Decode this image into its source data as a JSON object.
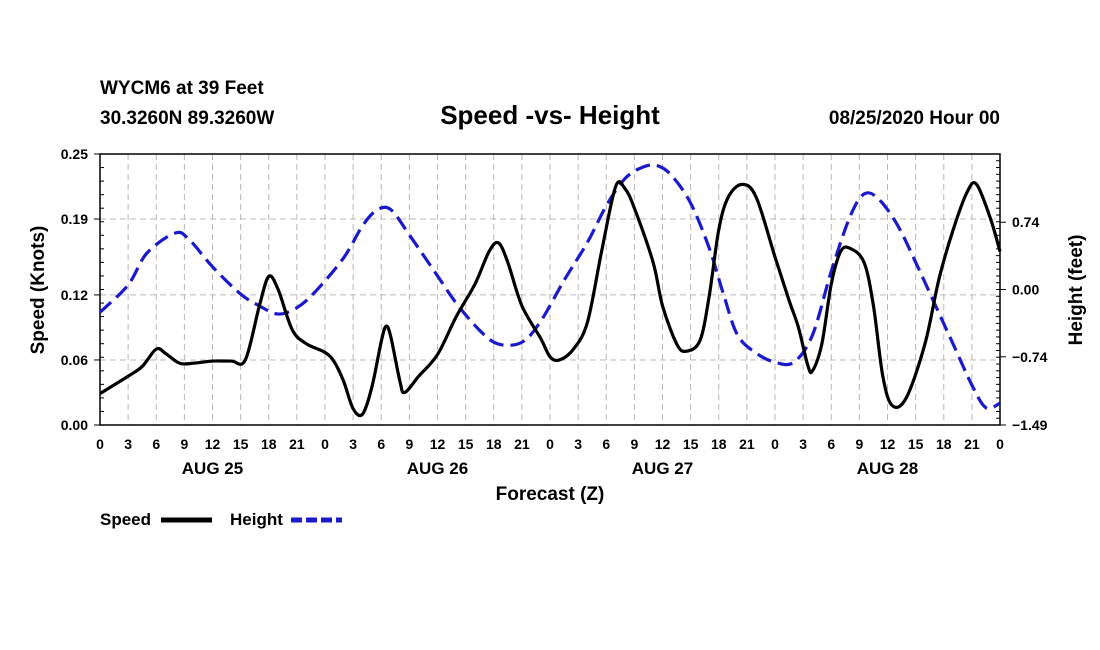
{
  "header": {
    "station_line": "WYCM6 at 39 Feet",
    "coords_line": "30.3260N 89.3260W",
    "datetime": "08/25/2020 Hour 00"
  },
  "legend": {
    "speed_label": "Speed",
    "height_label": "Height"
  },
  "chart_data": {
    "type": "line",
    "title": "Speed -vs- Height",
    "xlabel": "Forecast (Z)",
    "ylabel_left": "Speed (Knots)",
    "ylabel_right": "Height (feet)",
    "x_range": [
      0,
      96
    ],
    "x_tick_step_hours": 3,
    "x_tick_labels": [
      "0",
      "3",
      "6",
      "9",
      "12",
      "15",
      "18",
      "21",
      "0",
      "3",
      "6",
      "9",
      "12",
      "15",
      "18",
      "21",
      "0",
      "3",
      "6",
      "9",
      "12",
      "15",
      "18",
      "21",
      "0",
      "3",
      "6",
      "9",
      "12",
      "15",
      "18",
      "21",
      "0"
    ],
    "day_labels": [
      {
        "label": "AUG 25",
        "hour": 12
      },
      {
        "label": "AUG 26",
        "hour": 36
      },
      {
        "label": "AUG 27",
        "hour": 60
      },
      {
        "label": "AUG 28",
        "hour": 84
      }
    ],
    "y_left": {
      "range": [
        0,
        0.25
      ],
      "ticks": [
        0.0,
        0.06,
        0.12,
        0.19,
        0.25
      ],
      "tick_labels": [
        "0.00",
        "0.06",
        "0.12",
        "0.19",
        "0.25"
      ]
    },
    "y_right": {
      "range": [
        -1.49,
        1.49
      ],
      "ticks": [
        -1.49,
        -0.74,
        0.0,
        0.74
      ],
      "tick_labels": [
        "−1.49",
        "−0.74",
        "0.00",
        "0.74"
      ]
    },
    "grid": true,
    "series": [
      {
        "name": "Speed",
        "axis": "left",
        "color": "#000000",
        "style": "solid",
        "points": [
          [
            0,
            0.029
          ],
          [
            3,
            0.045
          ],
          [
            4.5,
            0.054
          ],
          [
            6,
            0.07
          ],
          [
            7,
            0.066
          ],
          [
            8.5,
            0.057
          ],
          [
            10,
            0.057
          ],
          [
            12,
            0.059
          ],
          [
            14,
            0.059
          ],
          [
            15.5,
            0.06
          ],
          [
            17,
            0.11
          ],
          [
            18,
            0.137
          ],
          [
            19,
            0.125
          ],
          [
            20.5,
            0.088
          ],
          [
            22,
            0.075
          ],
          [
            24,
            0.067
          ],
          [
            25,
            0.058
          ],
          [
            26,
            0.04
          ],
          [
            27,
            0.015
          ],
          [
            28,
            0.01
          ],
          [
            29,
            0.035
          ],
          [
            30,
            0.077
          ],
          [
            30.5,
            0.091
          ],
          [
            31,
            0.082
          ],
          [
            32,
            0.04
          ],
          [
            32.5,
            0.03
          ],
          [
            34,
            0.045
          ],
          [
            36,
            0.065
          ],
          [
            38,
            0.1
          ],
          [
            40,
            0.13
          ],
          [
            41.5,
            0.16
          ],
          [
            42.5,
            0.168
          ],
          [
            43.5,
            0.15
          ],
          [
            45,
            0.11
          ],
          [
            47,
            0.08
          ],
          [
            48,
            0.063
          ],
          [
            49,
            0.06
          ],
          [
            50.5,
            0.07
          ],
          [
            52,
            0.095
          ],
          [
            53.5,
            0.16
          ],
          [
            55,
            0.22
          ],
          [
            56,
            0.218
          ],
          [
            57,
            0.2
          ],
          [
            59,
            0.15
          ],
          [
            60,
            0.11
          ],
          [
            61.5,
            0.075
          ],
          [
            62.5,
            0.068
          ],
          [
            64,
            0.078
          ],
          [
            65,
            0.12
          ],
          [
            66,
            0.18
          ],
          [
            67,
            0.21
          ],
          [
            68.5,
            0.222
          ],
          [
            70,
            0.21
          ],
          [
            72,
            0.155
          ],
          [
            73.5,
            0.115
          ],
          [
            74.5,
            0.09
          ],
          [
            75.5,
            0.055
          ],
          [
            76,
            0.05
          ],
          [
            77,
            0.075
          ],
          [
            78,
            0.13
          ],
          [
            79,
            0.16
          ],
          [
            80,
            0.163
          ],
          [
            81.5,
            0.15
          ],
          [
            82.5,
            0.11
          ],
          [
            83.5,
            0.045
          ],
          [
            84.5,
            0.018
          ],
          [
            86,
            0.025
          ],
          [
            88,
            0.075
          ],
          [
            89.5,
            0.135
          ],
          [
            91,
            0.18
          ],
          [
            92.5,
            0.215
          ],
          [
            93.5,
            0.222
          ],
          [
            95,
            0.19
          ],
          [
            96,
            0.16
          ]
        ]
      },
      {
        "name": "Height",
        "axis": "right",
        "color": "#1a1acc",
        "style": "dashed",
        "points": [
          [
            0,
            -0.25
          ],
          [
            3,
            0.05
          ],
          [
            5,
            0.4
          ],
          [
            8,
            0.62
          ],
          [
            9.5,
            0.55
          ],
          [
            12,
            0.25
          ],
          [
            15,
            -0.05
          ],
          [
            17,
            -0.18
          ],
          [
            19,
            -0.27
          ],
          [
            21,
            -0.2
          ],
          [
            23,
            -0.02
          ],
          [
            26,
            0.35
          ],
          [
            28,
            0.7
          ],
          [
            29.5,
            0.87
          ],
          [
            31,
            0.88
          ],
          [
            33,
            0.6
          ],
          [
            36,
            0.15
          ],
          [
            38,
            -0.15
          ],
          [
            40.5,
            -0.45
          ],
          [
            42.5,
            -0.6
          ],
          [
            45,
            -0.58
          ],
          [
            47,
            -0.35
          ],
          [
            49.5,
            0.1
          ],
          [
            52,
            0.52
          ],
          [
            54,
            0.92
          ],
          [
            56,
            1.22
          ],
          [
            58,
            1.35
          ],
          [
            59.5,
            1.36
          ],
          [
            61,
            1.25
          ],
          [
            63,
            0.95
          ],
          [
            65,
            0.45
          ],
          [
            66.5,
            -0.05
          ],
          [
            68,
            -0.5
          ],
          [
            70,
            -0.7
          ],
          [
            72,
            -0.8
          ],
          [
            74,
            -0.8
          ],
          [
            76,
            -0.5
          ],
          [
            78,
            0.2
          ],
          [
            80,
            0.8
          ],
          [
            81.5,
            1.05
          ],
          [
            83,
            1.0
          ],
          [
            85,
            0.72
          ],
          [
            87,
            0.3
          ],
          [
            89,
            -0.15
          ],
          [
            91,
            -0.6
          ],
          [
            93,
            -1.05
          ],
          [
            94.5,
            -1.3
          ],
          [
            96,
            -1.25
          ]
        ]
      }
    ]
  }
}
